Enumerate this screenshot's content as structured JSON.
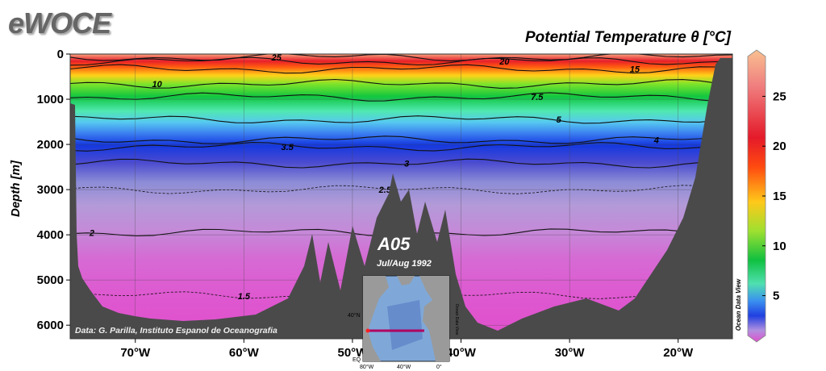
{
  "brand": "eWOCE",
  "chart_data": {
    "type": "heatmap",
    "title": "Potential Temperature θ [°C]",
    "ylabel": "Depth [m]",
    "xlabel": "",
    "x_ticks": [
      {
        "value": -70,
        "label": "70°W"
      },
      {
        "value": -60,
        "label": "60°W"
      },
      {
        "value": -50,
        "label": "50°W"
      },
      {
        "value": -40,
        "label": "40°W"
      },
      {
        "value": -30,
        "label": "30°W"
      },
      {
        "value": -20,
        "label": "20°W"
      }
    ],
    "y_ticks": [
      0,
      1000,
      2000,
      3000,
      4000,
      5000,
      6000
    ],
    "xlim": [
      -76,
      -15
    ],
    "ylim": [
      6300,
      0
    ],
    "colorbar": {
      "ticks": [
        25,
        20,
        15,
        10,
        5
      ],
      "range": [
        1,
        29
      ],
      "label": "Ocean Data View"
    },
    "isotherms": [
      {
        "value": 25,
        "label": "25",
        "depth": 70
      },
      {
        "value": 20,
        "label": "20",
        "depth": 160
      },
      {
        "value": 15,
        "label": "15",
        "depth": 330
      },
      {
        "value": 10,
        "label": "10",
        "depth": 660
      },
      {
        "value": 7.5,
        "label": "7.5",
        "depth": 950
      },
      {
        "value": 5,
        "label": "5",
        "depth": 1450
      },
      {
        "value": 4,
        "label": "4",
        "depth": 1900
      },
      {
        "value": 3.5,
        "label": "3.5",
        "depth": 2050
      },
      {
        "value": 3,
        "label": "3",
        "depth": 2420
      },
      {
        "value": 2.5,
        "label": "2.5",
        "depth": 3000
      },
      {
        "value": 2,
        "label": "2",
        "depth": 3950
      },
      {
        "value": 1.5,
        "label": "1.5",
        "depth": 5350
      }
    ],
    "section_label": "A05",
    "section_date": "Jul/Aug 1992",
    "credit": "Data: G. Parilla, Instituto Espanol de Oceanografia",
    "inset_map": {
      "lat_label": "40°N",
      "lon_labels": [
        "80°W",
        "40°W",
        "0°"
      ],
      "corner_label": "EQ",
      "side_label": "Ocean Data View"
    }
  }
}
